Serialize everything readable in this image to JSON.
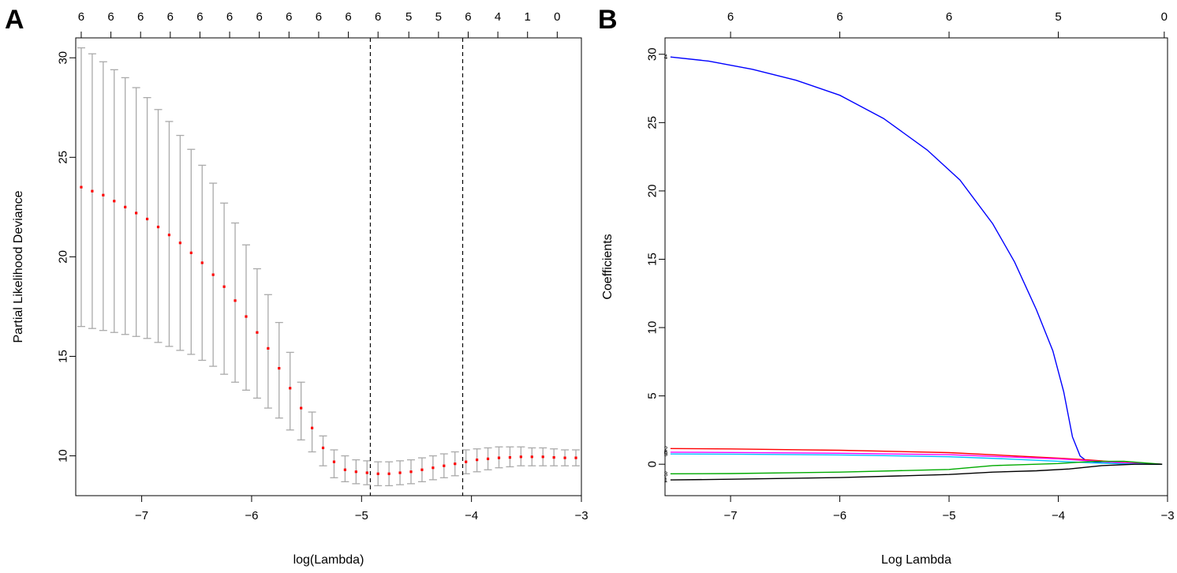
{
  "panels": {
    "a_label": "A",
    "b_label": "B"
  },
  "chart_data": [
    {
      "type": "scatter",
      "panel": "A",
      "xlabel": "log(Lambda)",
      "ylabel": "Partial Likelihood Deviance",
      "xlim": [
        -7.6,
        -3.0
      ],
      "ylim": [
        8.0,
        31.0
      ],
      "x_ticks": [
        -7,
        -6,
        -5,
        -4,
        -3
      ],
      "x_tick_labels": [
        "−7",
        "−6",
        "−5",
        "−4",
        "−3"
      ],
      "y_ticks": [
        10,
        15,
        20,
        25,
        30
      ],
      "y_tick_labels": [
        "10",
        "15",
        "20",
        "25",
        "30"
      ],
      "top_labels": [
        "6",
        "6",
        "6",
        "6",
        "6",
        "6",
        "6",
        "6",
        "6",
        "6",
        "6",
        "5",
        "5",
        "6",
        "4",
        "1",
        "0"
      ],
      "top_label_x": [
        -7.55,
        -7.28,
        -7.01,
        -6.74,
        -6.47,
        -6.2,
        -5.93,
        -5.66,
        -5.39,
        -5.12,
        -4.85,
        -4.57,
        -4.3,
        -4.03,
        -3.76,
        -3.49,
        -3.22
      ],
      "vlines": [
        -4.92,
        -4.08
      ],
      "series": [
        {
          "x": [
            -7.55,
            -7.45,
            -7.35,
            -7.25,
            -7.15,
            -7.05,
            -6.95,
            -6.85,
            -6.75,
            -6.65,
            -6.55,
            -6.45,
            -6.35,
            -6.25,
            -6.15,
            -6.05,
            -5.95,
            -5.85,
            -5.75,
            -5.65,
            -5.55,
            -5.45,
            -5.35,
            -5.25,
            -5.15,
            -5.05,
            -4.95,
            -4.85,
            -4.75,
            -4.65,
            -4.55,
            -4.45,
            -4.35,
            -4.25,
            -4.15,
            -4.05,
            -3.95,
            -3.85,
            -3.75,
            -3.65,
            -3.55,
            -3.45,
            -3.35,
            -3.25,
            -3.15,
            -3.05
          ],
          "mean": [
            23.5,
            23.3,
            23.1,
            22.8,
            22.5,
            22.2,
            21.9,
            21.5,
            21.1,
            20.7,
            20.2,
            19.7,
            19.1,
            18.5,
            17.8,
            17.0,
            16.2,
            15.4,
            14.4,
            13.4,
            12.4,
            11.4,
            10.4,
            9.7,
            9.3,
            9.2,
            9.15,
            9.1,
            9.1,
            9.15,
            9.2,
            9.3,
            9.4,
            9.5,
            9.6,
            9.7,
            9.8,
            9.85,
            9.9,
            9.92,
            9.95,
            9.95,
            9.95,
            9.92,
            9.9,
            9.9
          ],
          "lower": [
            16.5,
            16.4,
            16.3,
            16.2,
            16.1,
            16.0,
            15.9,
            15.7,
            15.5,
            15.3,
            15.1,
            14.8,
            14.5,
            14.1,
            13.7,
            13.3,
            12.9,
            12.4,
            11.9,
            11.3,
            10.8,
            10.2,
            9.5,
            8.9,
            8.7,
            8.6,
            8.55,
            8.5,
            8.5,
            8.55,
            8.6,
            8.7,
            8.8,
            8.9,
            9.0,
            9.1,
            9.2,
            9.3,
            9.4,
            9.45,
            9.5,
            9.5,
            9.5,
            9.5,
            9.5,
            9.5
          ],
          "upper": [
            30.5,
            30.2,
            29.8,
            29.4,
            29.0,
            28.5,
            28.0,
            27.4,
            26.8,
            26.1,
            25.4,
            24.6,
            23.7,
            22.7,
            21.7,
            20.6,
            19.4,
            18.1,
            16.7,
            15.2,
            13.7,
            12.2,
            11.0,
            10.3,
            10.0,
            9.8,
            9.75,
            9.7,
            9.7,
            9.75,
            9.8,
            9.9,
            10.0,
            10.1,
            10.2,
            10.3,
            10.35,
            10.4,
            10.45,
            10.45,
            10.45,
            10.4,
            10.4,
            10.35,
            10.3,
            10.3
          ]
        }
      ],
      "point_color": "#ff0000",
      "bar_color": "#aaaaaa"
    },
    {
      "type": "line",
      "panel": "B",
      "xlabel": "Log Lambda",
      "ylabel": "Coefficients",
      "xlim": [
        -7.6,
        -3.0
      ],
      "ylim": [
        -2.3,
        31.2
      ],
      "x_ticks": [
        -7,
        -6,
        -5,
        -4,
        -3
      ],
      "x_tick_labels": [
        "−7",
        "−6",
        "−5",
        "−4",
        "−3"
      ],
      "y_ticks": [
        0,
        5,
        10,
        15,
        20,
        25,
        30
      ],
      "y_tick_labels": [
        "0",
        "5",
        "10",
        "15",
        "20",
        "25",
        "30"
      ],
      "top_labels": [
        "6",
        "6",
        "6",
        "5",
        "0"
      ],
      "top_label_x": [
        -7,
        -6,
        -5,
        -4,
        -3.03
      ],
      "series": [
        {
          "name": "4",
          "color": "#0000ff",
          "x": [
            -7.55,
            -7.2,
            -6.8,
            -6.4,
            -6.0,
            -5.6,
            -5.2,
            -4.9,
            -4.6,
            -4.4,
            -4.2,
            -4.05,
            -3.95,
            -3.87,
            -3.8,
            -3.75,
            -3.7,
            -3.6,
            -3.4,
            -3.05
          ],
          "y": [
            29.8,
            29.5,
            28.9,
            28.1,
            27.0,
            25.3,
            23.0,
            20.8,
            17.6,
            14.8,
            11.3,
            8.3,
            5.3,
            2.0,
            0.6,
            0.3,
            0.2,
            0.1,
            0.02,
            0.0
          ]
        },
        {
          "name": "2",
          "color": "#ff0000",
          "x": [
            -7.55,
            -7.0,
            -6.0,
            -5.0,
            -4.5,
            -4.0,
            -3.7,
            -3.4,
            -3.05
          ],
          "y": [
            1.15,
            1.12,
            1.02,
            0.85,
            0.65,
            0.45,
            0.3,
            0.12,
            0.0
          ]
        },
        {
          "name": "6",
          "color": "#ff00ff",
          "x": [
            -7.55,
            -7.0,
            -6.0,
            -5.0,
            -4.5,
            -4.0,
            -3.7,
            -3.4,
            -3.05
          ],
          "y": [
            0.88,
            0.86,
            0.8,
            0.7,
            0.55,
            0.4,
            0.25,
            0.1,
            0.0
          ]
        },
        {
          "name": "5",
          "color": "#00bfff",
          "x": [
            -7.55,
            -7.0,
            -6.0,
            -5.0,
            -4.5,
            -4.0,
            -3.7,
            -3.4,
            -3.05
          ],
          "y": [
            0.75,
            0.74,
            0.68,
            0.55,
            0.4,
            0.22,
            0.1,
            0.03,
            0.0
          ]
        },
        {
          "name": "3",
          "color": "#00aa00",
          "x": [
            -7.55,
            -7.0,
            -6.0,
            -5.0,
            -4.6,
            -4.0,
            -3.7,
            -3.4,
            -3.05
          ],
          "y": [
            -0.7,
            -0.68,
            -0.58,
            -0.38,
            -0.1,
            0.05,
            0.2,
            0.22,
            0.0
          ]
        },
        {
          "name": "1",
          "color": "#000000",
          "x": [
            -7.55,
            -7.0,
            -6.0,
            -5.0,
            -4.6,
            -4.2,
            -3.9,
            -3.6,
            -3.3,
            -3.05
          ],
          "y": [
            -1.15,
            -1.1,
            -0.98,
            -0.75,
            -0.58,
            -0.48,
            -0.35,
            -0.1,
            0.0,
            0.0
          ]
        }
      ]
    }
  ]
}
